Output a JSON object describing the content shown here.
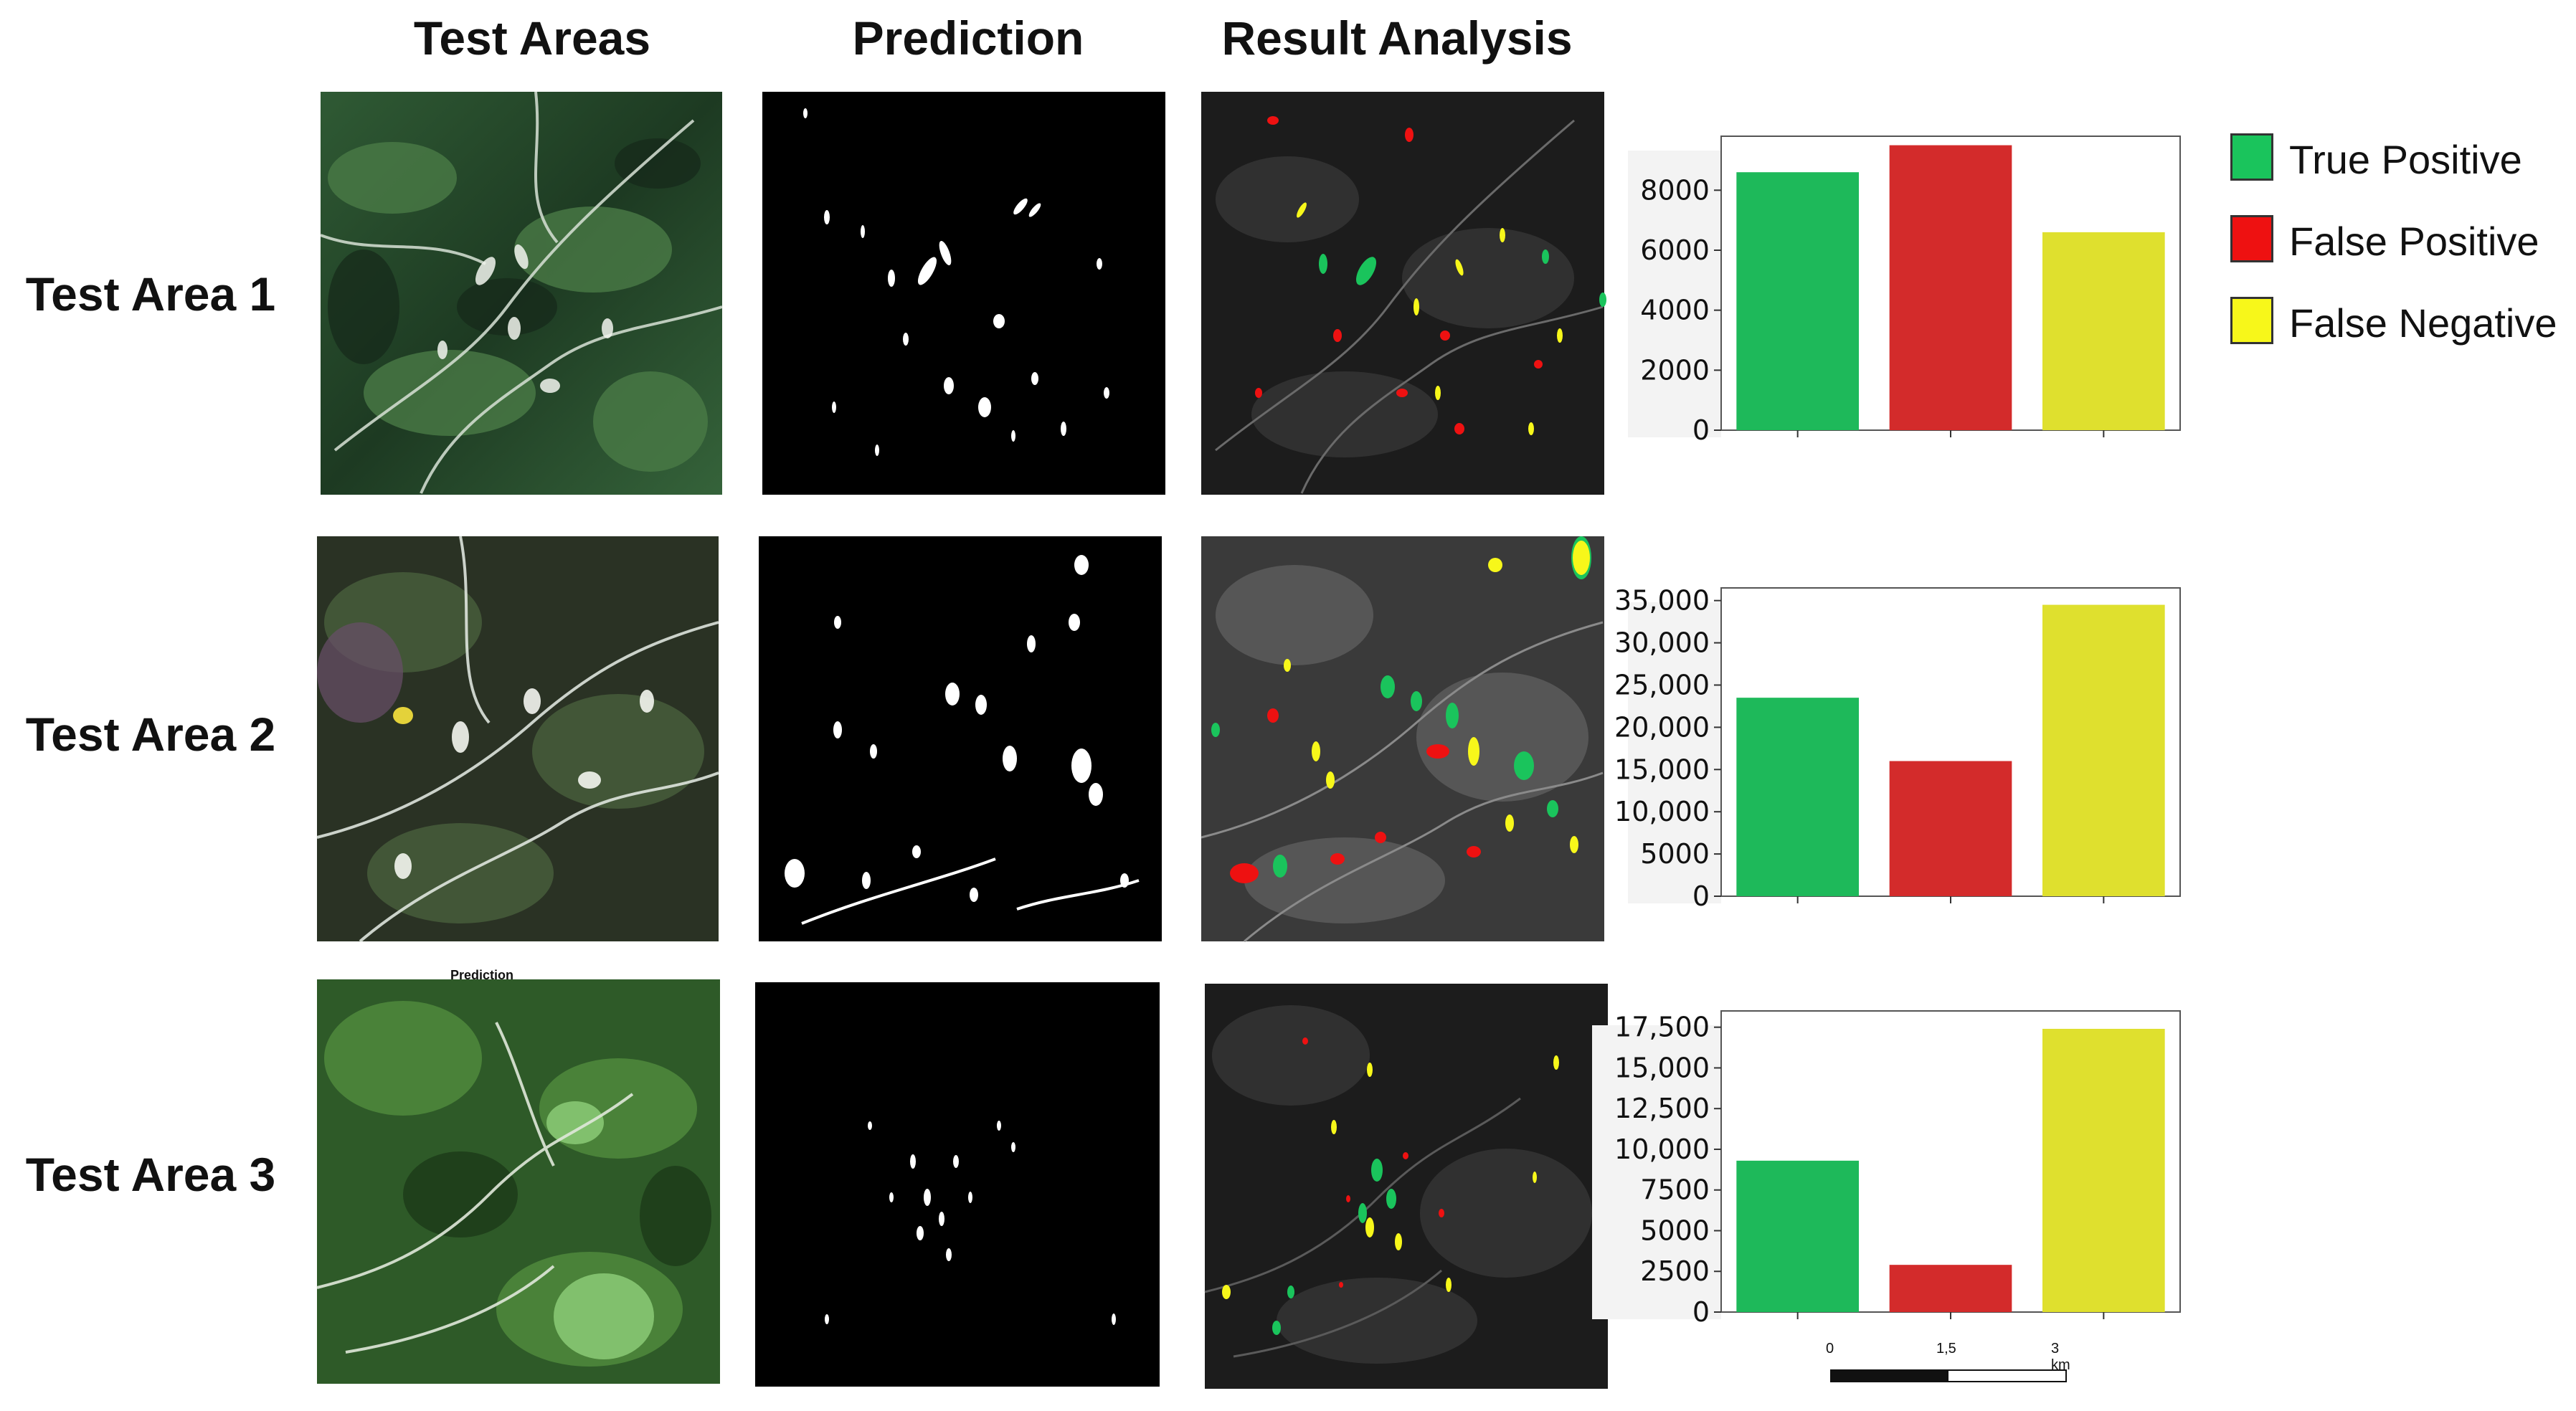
{
  "columns": {
    "test_areas": "Test Areas",
    "prediction": "Prediction",
    "result_analysis": "Result Analysis"
  },
  "rows": [
    {
      "label": "Test Area 1"
    },
    {
      "label": "Test Area 2"
    },
    {
      "label": "Test Area 3"
    }
  ],
  "tiny_caption": "Prediction",
  "legend": [
    {
      "label": "True Positive",
      "color": "#1ac45c"
    },
    {
      "label": "False Positive",
      "color": "#ee1111"
    },
    {
      "label": "False Negative",
      "color": "#f7f71a"
    }
  ],
  "scalebar": {
    "labels": [
      "0",
      "1,5",
      "3 km"
    ]
  },
  "chart_data": [
    {
      "type": "bar",
      "categories": [
        "True Positive",
        "False Positive",
        "False Negative"
      ],
      "values": [
        8600,
        9500,
        6600
      ],
      "colors": [
        "#1eb95a",
        "#d32b2b",
        "#dfe02e"
      ],
      "ylim": [
        0,
        9800
      ],
      "yticks": [
        0,
        2000,
        4000,
        6000,
        8000
      ],
      "ytick_labels": [
        "0",
        "2000",
        "4000",
        "6000",
        "8000"
      ],
      "title": "",
      "xlabel": "",
      "ylabel": ""
    },
    {
      "type": "bar",
      "categories": [
        "True Positive",
        "False Positive",
        "False Negative"
      ],
      "values": [
        23500,
        16000,
        34500
      ],
      "colors": [
        "#1eb95a",
        "#d32b2b",
        "#dfe02e"
      ],
      "ylim": [
        0,
        36500
      ],
      "yticks": [
        0,
        5000,
        10000,
        15000,
        20000,
        25000,
        30000,
        35000
      ],
      "ytick_labels": [
        "0",
        "5000",
        "10,000",
        "15,000",
        "20,000",
        "25,000",
        "30,000",
        "35,000"
      ],
      "title": "",
      "xlabel": "",
      "ylabel": ""
    },
    {
      "type": "bar",
      "categories": [
        "True Positive",
        "False Positive",
        "False Negative"
      ],
      "values": [
        9300,
        2900,
        17400
      ],
      "colors": [
        "#1eb95a",
        "#d32b2b",
        "#dfe02e"
      ],
      "ylim": [
        0,
        18500
      ],
      "yticks": [
        0,
        2500,
        5000,
        7500,
        10000,
        12500,
        15000,
        17500
      ],
      "ytick_labels": [
        "0",
        "2500",
        "5000",
        "7500",
        "10,000",
        "12,500",
        "15,000",
        "17,500"
      ],
      "title": "",
      "xlabel": "",
      "ylabel": ""
    }
  ]
}
